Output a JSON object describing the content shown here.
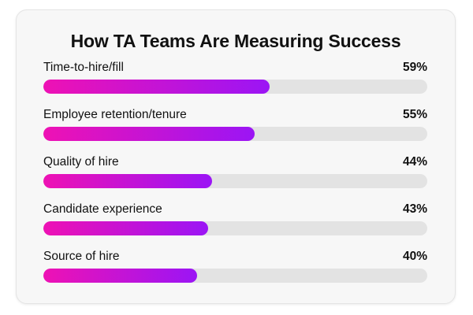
{
  "chart_data": {
    "type": "bar",
    "orientation": "horizontal",
    "title": "How TA Teams Are Measuring Success",
    "categories": [
      "Time-to-hire/fill",
      "Employee retention/tenure",
      "Quality of hire",
      "Candidate experience",
      "Source of hire"
    ],
    "values": [
      59,
      55,
      44,
      43,
      40
    ],
    "value_labels": [
      "59%",
      "55%",
      "44%",
      "43%",
      "40%"
    ],
    "xlim": [
      0,
      100
    ],
    "xlabel": "",
    "ylabel": "",
    "grid": false,
    "legend": "none"
  },
  "colors": {
    "bar_gradient_start": "#ee12b4",
    "bar_gradient_end": "#9b15f5",
    "track": "#e3e3e3",
    "card_background": "#f7f7f7",
    "text": "#111111"
  }
}
